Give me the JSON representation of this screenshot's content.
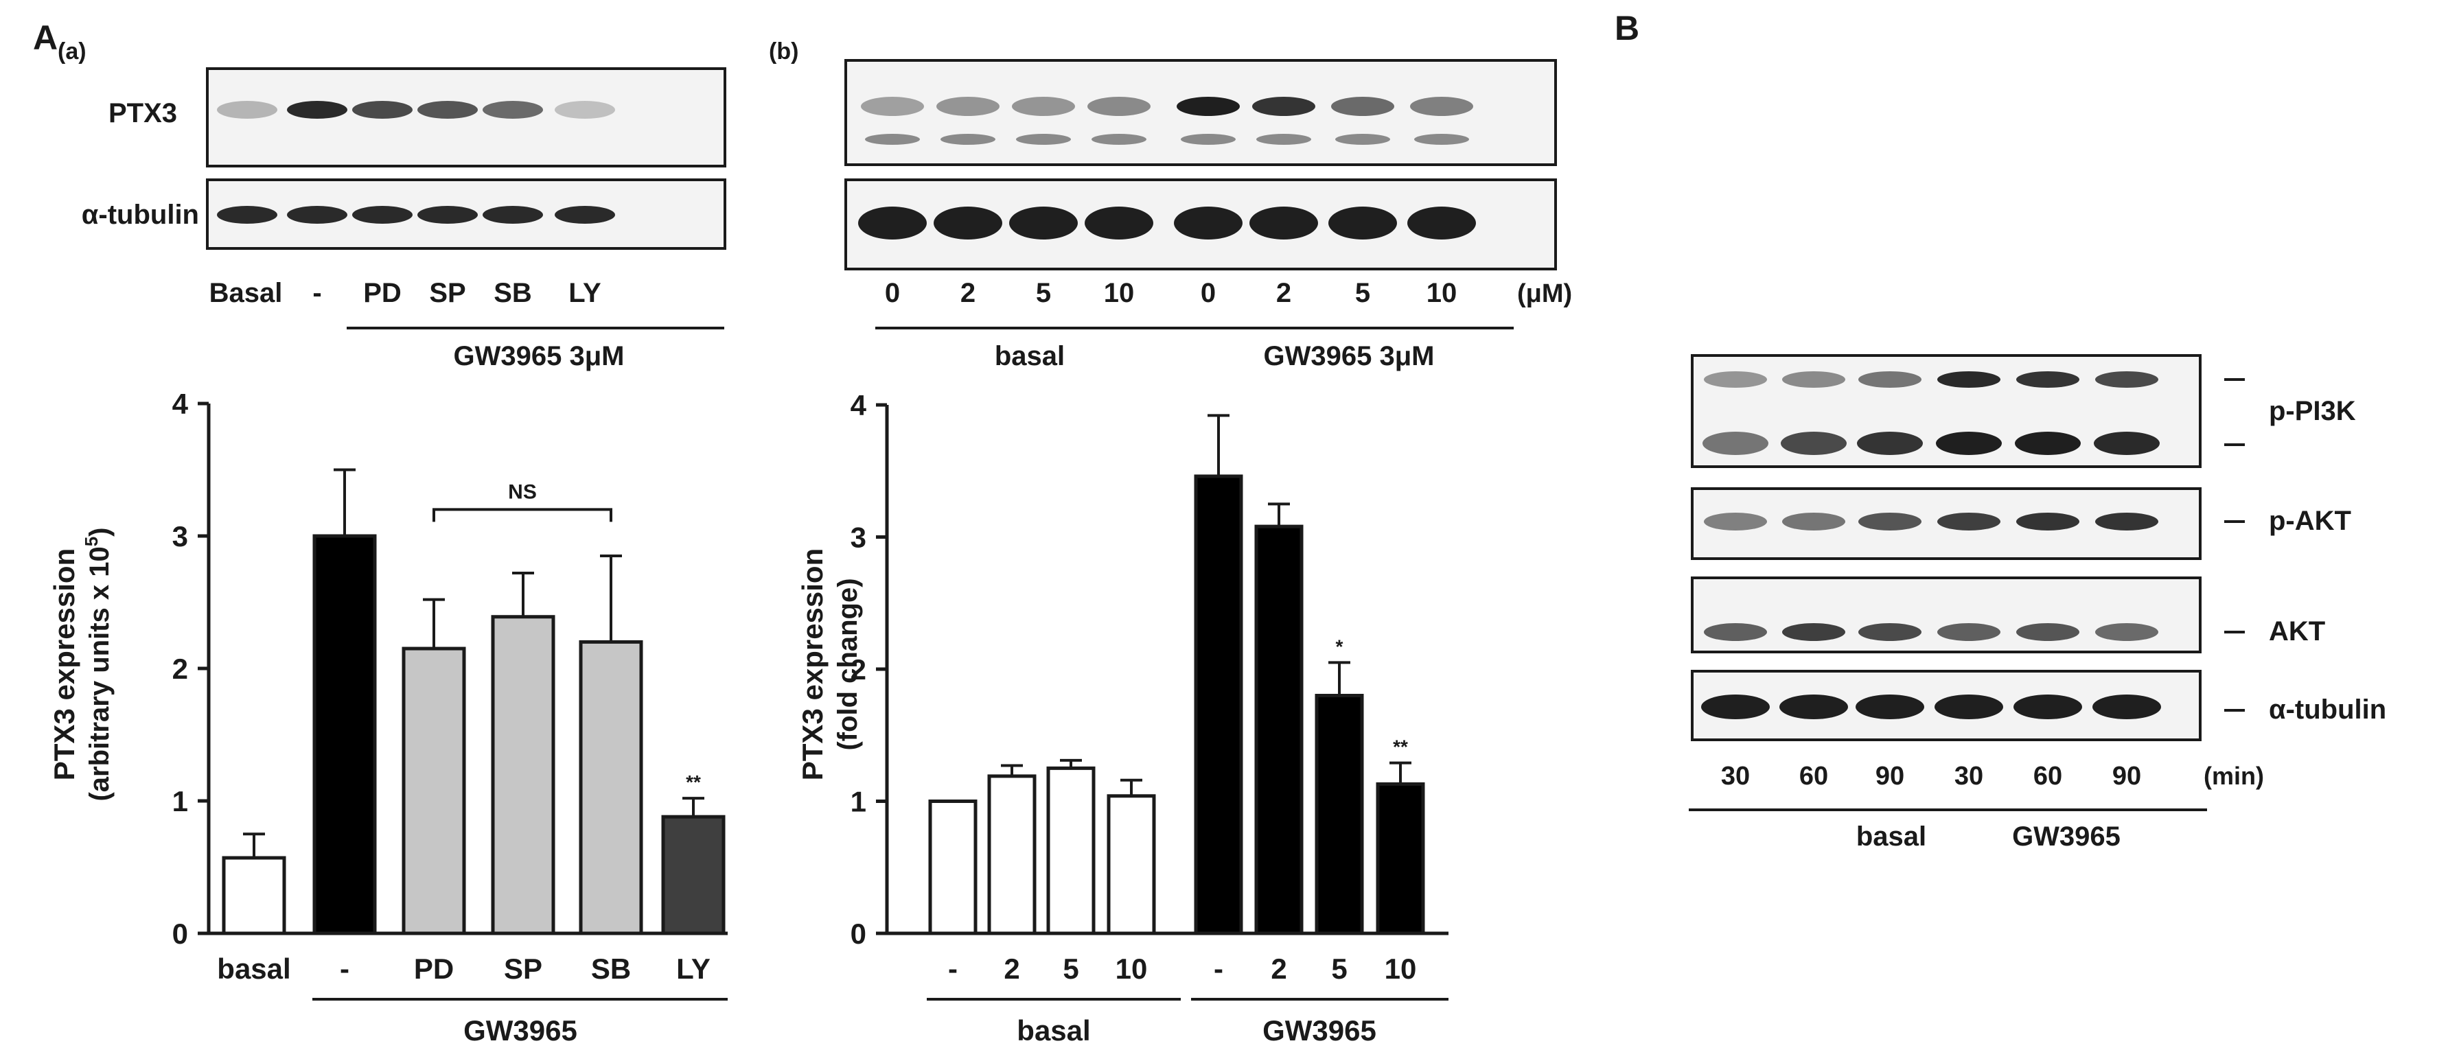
{
  "panel_labels": {
    "A": "A",
    "a": "(a)",
    "b": "(b)",
    "B": "B"
  },
  "blots": {
    "a": {
      "rows": [
        "PTX3",
        "α-tubulin"
      ],
      "lanes": [
        "Basal",
        "-",
        "PD",
        "SP",
        "SB",
        "LY"
      ],
      "treatment": "GW3965 3μM",
      "ptx3_intensity": [
        0.25,
        0.9,
        0.75,
        0.7,
        0.6,
        0.2
      ]
    },
    "b": {
      "lanes": [
        "0",
        "2",
        "5",
        "10",
        "0",
        "2",
        "5",
        "10"
      ],
      "unit": "(μM)",
      "groups": [
        "basal",
        "GW3965 3μM"
      ],
      "ptx3_intensity": [
        0.35,
        0.4,
        0.4,
        0.45,
        0.95,
        0.85,
        0.6,
        0.5
      ]
    },
    "B": {
      "rows": [
        "p-PI3K",
        "p-AKT",
        "AKT",
        "α-tubulin"
      ],
      "lanes": [
        "30",
        "60",
        "90",
        "30",
        "60",
        "90"
      ],
      "unit": "(min)",
      "groups": [
        "basal",
        "GW3965"
      ]
    }
  },
  "chart_data": [
    {
      "type": "bar",
      "ylabel_line1": "PTX3 expression",
      "ylabel_line2": "(arbitrary units x 10",
      "ylabel_sup": "5",
      "ylabel_close": ")",
      "ylim": [
        0,
        4
      ],
      "yticks": [
        "0",
        "1",
        "2",
        "3",
        "4"
      ],
      "categories": [
        "basal",
        "-",
        "PD",
        "SP",
        "SB",
        "LY"
      ],
      "values": [
        0.57,
        3.0,
        2.15,
        2.39,
        2.2,
        0.88
      ],
      "errors": [
        0.18,
        0.5,
        0.37,
        0.33,
        0.65,
        0.14
      ],
      "bar_colors": [
        "#ffffff",
        "#000000",
        "#c6c6c6",
        "#c6c6c6",
        "#c6c6c6",
        "#3f3f3f"
      ],
      "significance": [
        "",
        "",
        "",
        "",
        "",
        "**"
      ],
      "bracket_label": "NS",
      "group_label": "GW3965"
    },
    {
      "type": "bar",
      "ylabel_line1": "PTX3 expression",
      "ylabel_line2": "(fold change)",
      "ylim": [
        0,
        4
      ],
      "yticks": [
        "0",
        "1",
        "2",
        "3",
        "4"
      ],
      "categories": [
        "-",
        "2",
        "5",
        "10",
        "-",
        "2",
        "5",
        "10"
      ],
      "values": [
        1.0,
        1.19,
        1.25,
        1.04,
        3.46,
        3.08,
        1.8,
        1.13
      ],
      "errors": [
        0.0,
        0.08,
        0.06,
        0.12,
        0.46,
        0.17,
        0.25,
        0.16
      ],
      "bar_colors": [
        "#ffffff",
        "#ffffff",
        "#ffffff",
        "#ffffff",
        "#000000",
        "#000000",
        "#000000",
        "#000000"
      ],
      "significance": [
        "",
        "",
        "",
        "",
        "",
        "",
        "*",
        "**"
      ],
      "groups": [
        "basal",
        "GW3965"
      ]
    }
  ]
}
